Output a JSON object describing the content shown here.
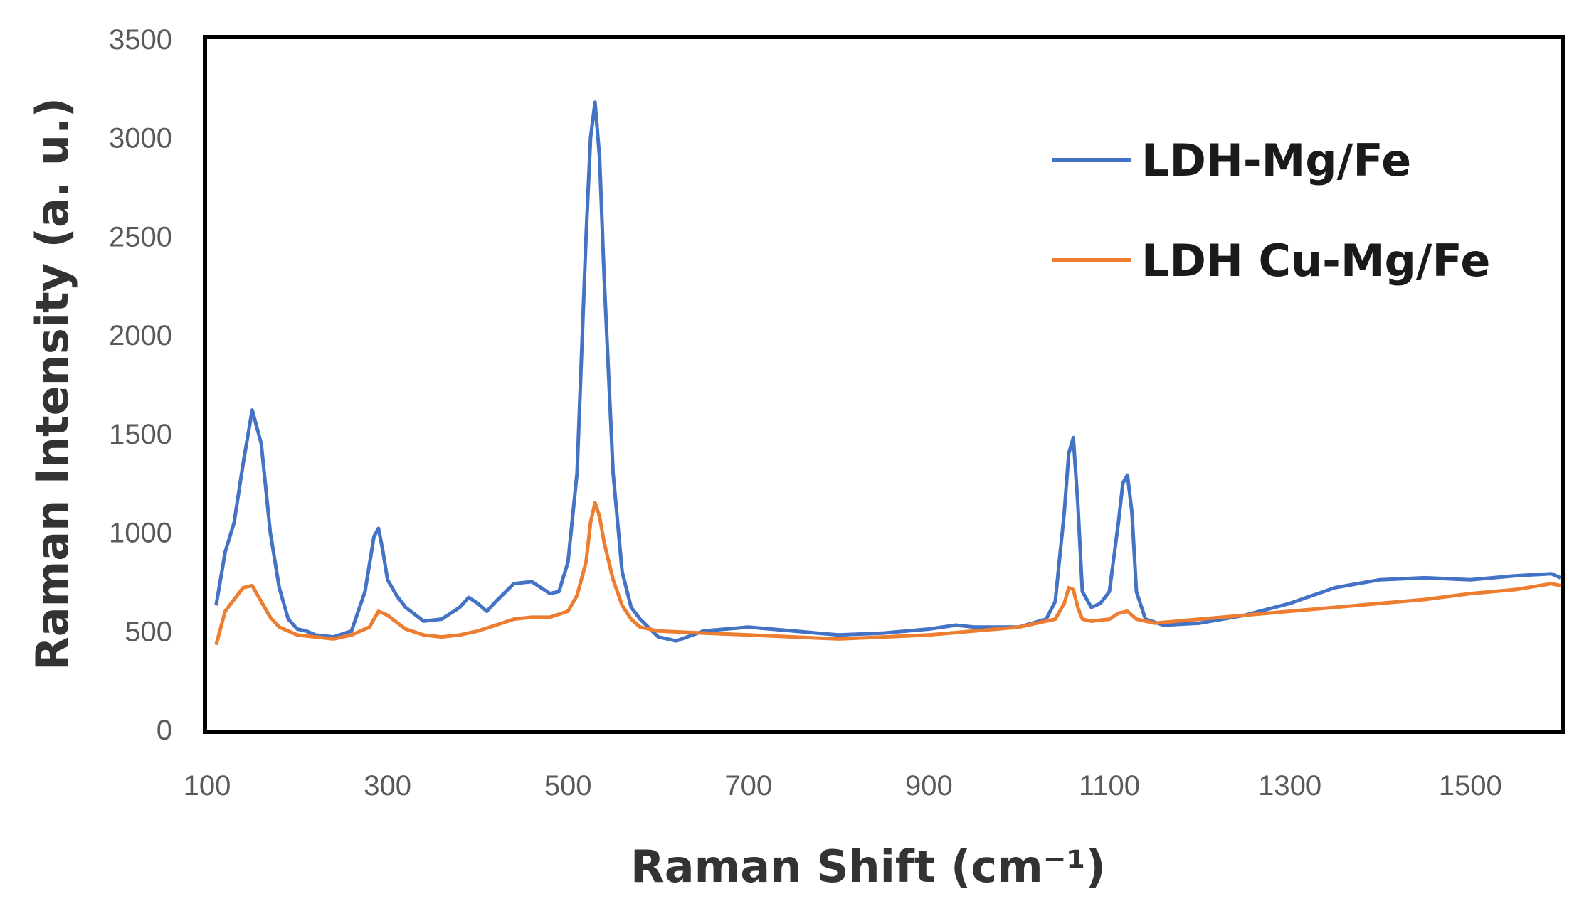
{
  "chart_data": {
    "type": "line",
    "title": "",
    "xlabel": "Raman Shift (cm⁻¹)",
    "ylabel": "Raman Intensity (a. u.)",
    "xlim": [
      100,
      1600
    ],
    "ylim": [
      0,
      3500
    ],
    "xticks": [
      100,
      300,
      500,
      700,
      900,
      1100,
      1300,
      1500
    ],
    "yticks": [
      0,
      500,
      1000,
      1500,
      2000,
      2500,
      3000,
      3500
    ],
    "grid": false,
    "legend_position": "top-right",
    "series": [
      {
        "name": "LDH-Mg/Fe",
        "color": "#4472C4",
        "x": [
          110,
          120,
          130,
          140,
          150,
          160,
          170,
          180,
          190,
          200,
          210,
          220,
          240,
          260,
          275,
          285,
          290,
          295,
          300,
          310,
          320,
          340,
          360,
          380,
          390,
          400,
          410,
          420,
          440,
          460,
          480,
          490,
          500,
          510,
          520,
          525,
          530,
          535,
          540,
          550,
          560,
          570,
          580,
          600,
          620,
          650,
          700,
          750,
          800,
          850,
          900,
          930,
          950,
          1000,
          1030,
          1040,
          1050,
          1055,
          1060,
          1065,
          1070,
          1080,
          1090,
          1100,
          1110,
          1115,
          1120,
          1125,
          1130,
          1140,
          1160,
          1200,
          1250,
          1300,
          1350,
          1400,
          1450,
          1500,
          1550,
          1590,
          1600
        ],
        "y": [
          630,
          900,
          1050,
          1350,
          1620,
          1450,
          1000,
          720,
          560,
          510,
          500,
          480,
          470,
          500,
          700,
          980,
          1020,
          900,
          760,
          680,
          620,
          550,
          560,
          620,
          670,
          640,
          600,
          650,
          740,
          750,
          690,
          700,
          850,
          1300,
          2500,
          3000,
          3180,
          2900,
          2300,
          1300,
          800,
          620,
          560,
          470,
          450,
          500,
          520,
          500,
          480,
          490,
          510,
          530,
          520,
          520,
          560,
          650,
          1100,
          1400,
          1480,
          1150,
          700,
          620,
          640,
          700,
          1050,
          1250,
          1290,
          1100,
          700,
          560,
          530,
          540,
          580,
          640,
          720,
          760,
          770,
          760,
          780,
          790,
          770
        ]
      },
      {
        "name": "LDH Cu-Mg/Fe",
        "color": "#ED7D31",
        "x": [
          110,
          120,
          130,
          140,
          150,
          160,
          170,
          180,
          200,
          220,
          240,
          260,
          280,
          290,
          300,
          320,
          340,
          360,
          380,
          400,
          420,
          440,
          460,
          480,
          500,
          510,
          520,
          525,
          530,
          535,
          540,
          550,
          560,
          570,
          580,
          600,
          650,
          700,
          750,
          800,
          850,
          900,
          950,
          1000,
          1040,
          1050,
          1055,
          1060,
          1065,
          1070,
          1080,
          1100,
          1110,
          1120,
          1130,
          1150,
          1200,
          1250,
          1300,
          1350,
          1400,
          1450,
          1500,
          1550,
          1590,
          1600
        ],
        "y": [
          430,
          600,
          660,
          720,
          730,
          650,
          570,
          520,
          480,
          470,
          460,
          480,
          520,
          600,
          580,
          510,
          480,
          470,
          480,
          500,
          530,
          560,
          570,
          570,
          600,
          680,
          850,
          1050,
          1150,
          1080,
          950,
          760,
          630,
          560,
          520,
          500,
          490,
          480,
          470,
          460,
          470,
          480,
          500,
          520,
          560,
          640,
          720,
          710,
          620,
          560,
          550,
          560,
          590,
          600,
          560,
          540,
          560,
          580,
          600,
          620,
          640,
          660,
          690,
          710,
          740,
          730
        ]
      }
    ]
  }
}
